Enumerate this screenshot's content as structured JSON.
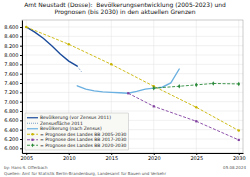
{
  "chart_data": {
    "type": "line",
    "title": "Amt Neustadt (Dosse):  Bevölkerungsentwicklung (2005-2023) und\nPrognosen (bis 2030) in den aktuellen Grenzen",
    "xlim": [
      2004.5,
      2030.5
    ],
    "ylim": [
      5900,
      8750
    ],
    "xticks": [
      2005,
      2010,
      2015,
      2020,
      2025,
      2030
    ],
    "yticks": [
      {
        "value": 6000,
        "label": "6.000"
      },
      {
        "value": 6200,
        "label": "6.200"
      },
      {
        "value": 6400,
        "label": "6.400"
      },
      {
        "value": 6600,
        "label": "6.600"
      },
      {
        "value": 6800,
        "label": "6.800"
      },
      {
        "value": 7000,
        "label": "7.000"
      },
      {
        "value": 7200,
        "label": "7.200"
      },
      {
        "value": 7400,
        "label": "7.400"
      },
      {
        "value": 7600,
        "label": "7.600"
      },
      {
        "value": 7800,
        "label": "7.800"
      },
      {
        "value": 8000,
        "label": "8.000"
      },
      {
        "value": 8200,
        "label": "8.200"
      },
      {
        "value": 8400,
        "label": "8.400"
      },
      {
        "value": 8600,
        "label": "8.600"
      }
    ],
    "grid": true,
    "legend": "lower left",
    "series": [
      {
        "name": "Bevölkerung (vor Zensus 2011)",
        "color": "#1a4a9a",
        "line_style": "solid",
        "marker": "none",
        "x": [
          2005,
          2006,
          2007,
          2008,
          2009,
          2010,
          2011
        ],
        "values": [
          8600,
          8490,
          8360,
          8200,
          8020,
          7870,
          7760
        ]
      },
      {
        "name": "Zensusfläche 2011",
        "color": "#4a7ab5",
        "line_style": "dotted",
        "marker": "none",
        "x": [
          2011,
          2011.5
        ],
        "values": [
          7760,
          7640
        ]
      },
      {
        "name": "Bevölkerung (nach Zensus)",
        "color": "#6ab0e0",
        "line_style": "solid",
        "marker": "none",
        "x": [
          2011,
          2012,
          2013,
          2014,
          2015,
          2016,
          2017,
          2018,
          2019,
          2020,
          2021,
          2022,
          2023
        ],
        "values": [
          7340,
          7270,
          7230,
          7210,
          7200,
          7190,
          7180,
          7220,
          7270,
          7290,
          7310,
          7400,
          7700
        ]
      },
      {
        "name": "= Prognose des Landes BB 2005-2030",
        "color": "#c8b400",
        "line_style": "dashed",
        "marker": "circle",
        "x": [
          2005,
          2010,
          2015,
          2020,
          2025,
          2030
        ],
        "values": [
          8600,
          8230,
          7800,
          7330,
          6880,
          6380
        ]
      },
      {
        "name": "= Prognose des Landes BB 2017-2030",
        "color": "#8040a0",
        "line_style": "dashed",
        "marker": "square",
        "x": [
          2017,
          2020,
          2025,
          2030
        ],
        "values": [
          7180,
          6900,
          6580,
          6180
        ]
      },
      {
        "name": "= Prognose des Landes BB 2020-2030",
        "color": "#2a8a3a",
        "line_style": "dashed",
        "marker": "diamond",
        "x": [
          2020,
          2023,
          2025,
          2027,
          2030
        ],
        "values": [
          7290,
          7330,
          7360,
          7390,
          7380
        ]
      }
    ],
    "annotations": [
      "by: Hans-S. Offerbach",
      "Quellen: Amt für Statistik Berlin-Brandenburg, Landesamt für Bauen und Verkehr",
      "05.08.2024"
    ]
  }
}
